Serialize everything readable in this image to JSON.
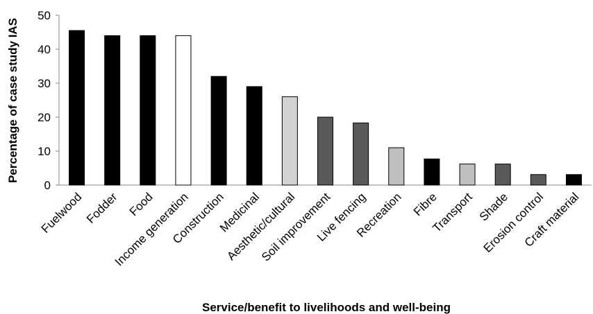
{
  "chart_data": {
    "type": "bar",
    "title": "",
    "xlabel": "Service/benefit to livelihoods and well-being",
    "ylabel": "Percentage of case study IAS",
    "ylim": [
      0,
      50
    ],
    "yticks": [
      0,
      10,
      20,
      30,
      40,
      50
    ],
    "grid": false,
    "legend": "none",
    "categories": [
      "Fuelwood",
      "Fodder",
      "Food",
      "Income generation",
      "Construction",
      "Medicinal",
      "Aesthetic/cultural",
      "Soil improvement",
      "Live fencing",
      "Recreation",
      "Fibre",
      "Transport",
      "Shade",
      "Erosion control",
      "Craft material"
    ],
    "values": [
      45.5,
      44,
      44,
      44,
      32,
      29,
      26,
      20,
      18.3,
      11,
      7.7,
      6.2,
      6.2,
      3.1,
      3.1
    ],
    "bar_colors": [
      "#000000",
      "#000000",
      "#000000",
      "#ffffff",
      "#000000",
      "#000000",
      "#d3d3d3",
      "#595959",
      "#595959",
      "#bfbfbf",
      "#000000",
      "#bfbfbf",
      "#595959",
      "#595959",
      "#000000"
    ]
  }
}
